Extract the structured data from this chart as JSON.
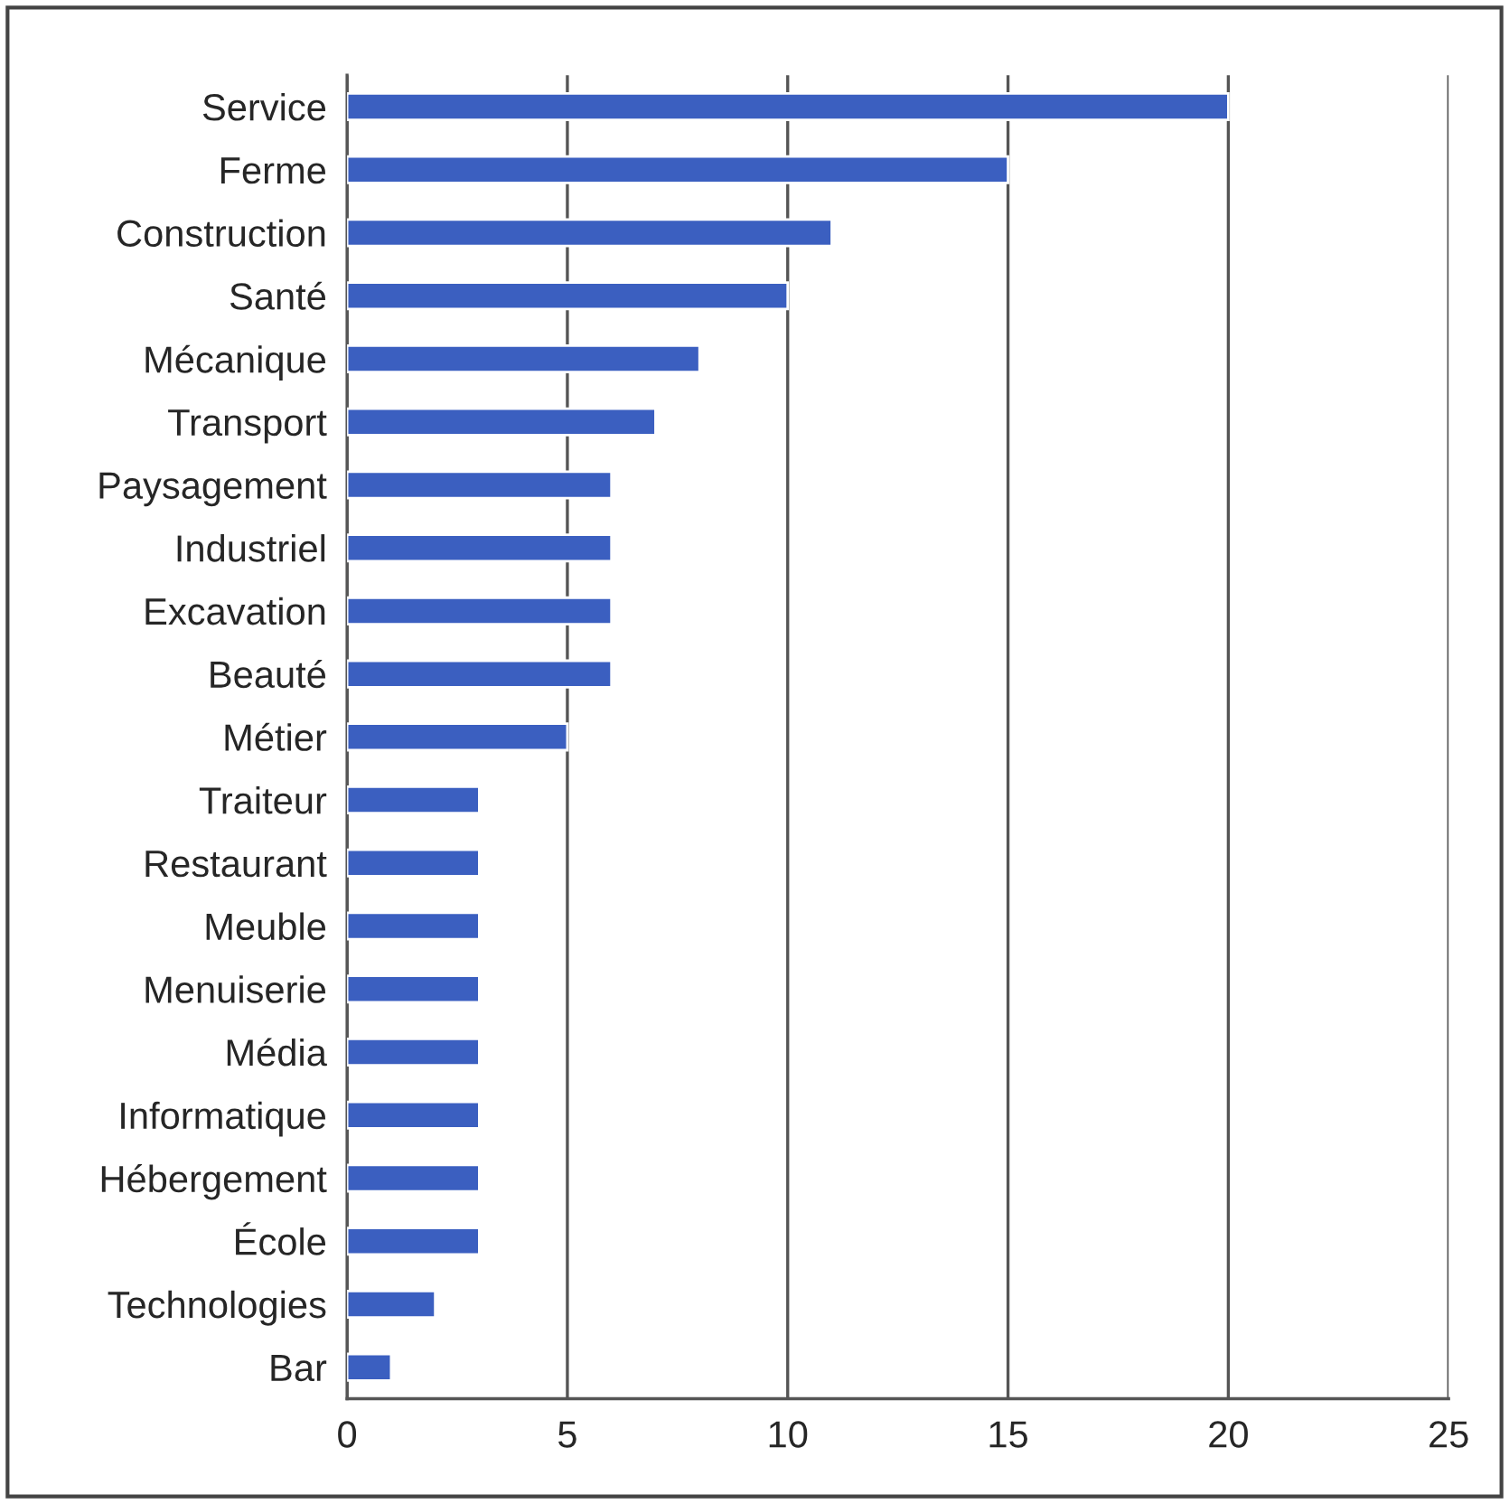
{
  "chart_data": {
    "type": "bar",
    "orientation": "horizontal",
    "categories": [
      "Service",
      "Ferme",
      "Construction",
      "Santé",
      "Mécanique",
      "Transport",
      "Paysagement",
      "Industriel",
      "Excavation",
      "Beauté",
      "Métier",
      "Traiteur",
      "Restaurant",
      "Meuble",
      "Menuiserie",
      "Média",
      "Informatique",
      "Hébergement",
      "École",
      "Technologies",
      "Bar"
    ],
    "values": [
      20,
      15,
      11,
      10,
      8,
      7,
      6,
      6,
      6,
      6,
      5,
      3,
      3,
      3,
      3,
      3,
      3,
      3,
      3,
      2,
      1
    ],
    "color": "#3b5fc0",
    "xlim": [
      0,
      25
    ],
    "xticks": [
      0,
      5,
      10,
      15,
      20,
      25
    ],
    "grid": "x"
  }
}
